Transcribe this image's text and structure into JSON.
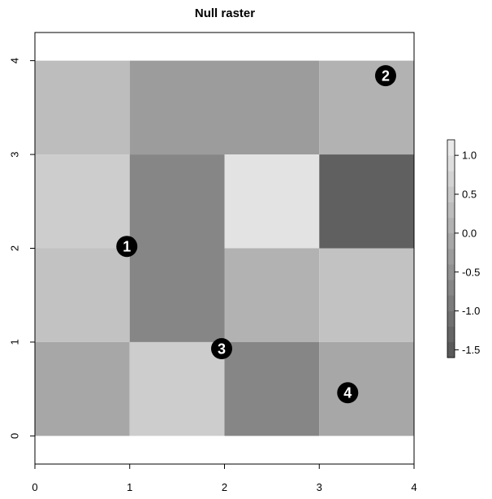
{
  "chart_data": {
    "type": "heatmap",
    "title": "Null raster",
    "xlabel": "",
    "ylabel": "",
    "xlim": [
      0,
      4
    ],
    "ylim": [
      -0.3,
      4.3
    ],
    "x_ticks": [
      0,
      1,
      2,
      3,
      4
    ],
    "y_ticks": [
      0,
      1,
      2,
      3,
      4
    ],
    "x_tick_labels": [
      "0",
      "1",
      "2",
      "3",
      "4"
    ],
    "y_tick_labels": [
      "0",
      "1",
      "2",
      "3",
      "4"
    ],
    "grid": false,
    "cells": [
      {
        "x0": 0,
        "x1": 1,
        "y0": 3,
        "y1": 4,
        "value": 0.3
      },
      {
        "x0": 1,
        "x1": 2,
        "y0": 3,
        "y1": 4,
        "value": -0.3
      },
      {
        "x0": 2,
        "x1": 3,
        "y0": 3,
        "y1": 4,
        "value": -0.3
      },
      {
        "x0": 3,
        "x1": 4,
        "y0": 3,
        "y1": 4,
        "value": 0.1
      },
      {
        "x0": 0,
        "x1": 1,
        "y0": 2,
        "y1": 3,
        "value": 0.6
      },
      {
        "x0": 1,
        "x1": 2,
        "y0": 2,
        "y1": 3,
        "value": -0.7
      },
      {
        "x0": 2,
        "x1": 3,
        "y0": 2,
        "y1": 3,
        "value": 1.0
      },
      {
        "x0": 3,
        "x1": 4,
        "y0": 2,
        "y1": 3,
        "value": -1.4
      },
      {
        "x0": 0,
        "x1": 1,
        "y0": 1,
        "y1": 2,
        "value": 0.4
      },
      {
        "x0": 1,
        "x1": 2,
        "y0": 1,
        "y1": 2,
        "value": -0.7
      },
      {
        "x0": 2,
        "x1": 3,
        "y0": 1,
        "y1": 2,
        "value": 0.1
      },
      {
        "x0": 3,
        "x1": 4,
        "y0": 1,
        "y1": 2,
        "value": 0.4
      },
      {
        "x0": 0,
        "x1": 1,
        "y0": 0,
        "y1": 1,
        "value": -0.1
      },
      {
        "x0": 1,
        "x1": 2,
        "y0": 0,
        "y1": 1,
        "value": 0.6
      },
      {
        "x0": 2,
        "x1": 3,
        "y0": 0,
        "y1": 1,
        "value": -0.7
      },
      {
        "x0": 3,
        "x1": 4,
        "y0": 0,
        "y1": 1,
        "value": -0.1
      }
    ],
    "points": [
      {
        "label": "1",
        "x": 0.97,
        "y": 2.02
      },
      {
        "label": "2",
        "x": 3.7,
        "y": 3.84
      },
      {
        "label": "3",
        "x": 1.97,
        "y": 0.93
      },
      {
        "label": "4",
        "x": 3.3,
        "y": 0.46
      }
    ],
    "legend": {
      "position": "right",
      "min": -1.6,
      "max": 1.2,
      "ticks": [
        1.0,
        0.5,
        0.0,
        -0.5,
        -1.0,
        -1.5
      ],
      "tick_labels": [
        "1.0",
        "0.5",
        "0.0",
        "-0.5",
        "-1.0",
        "-1.5"
      ],
      "low_color": "#555555",
      "high_color": "#eeeeee"
    }
  }
}
